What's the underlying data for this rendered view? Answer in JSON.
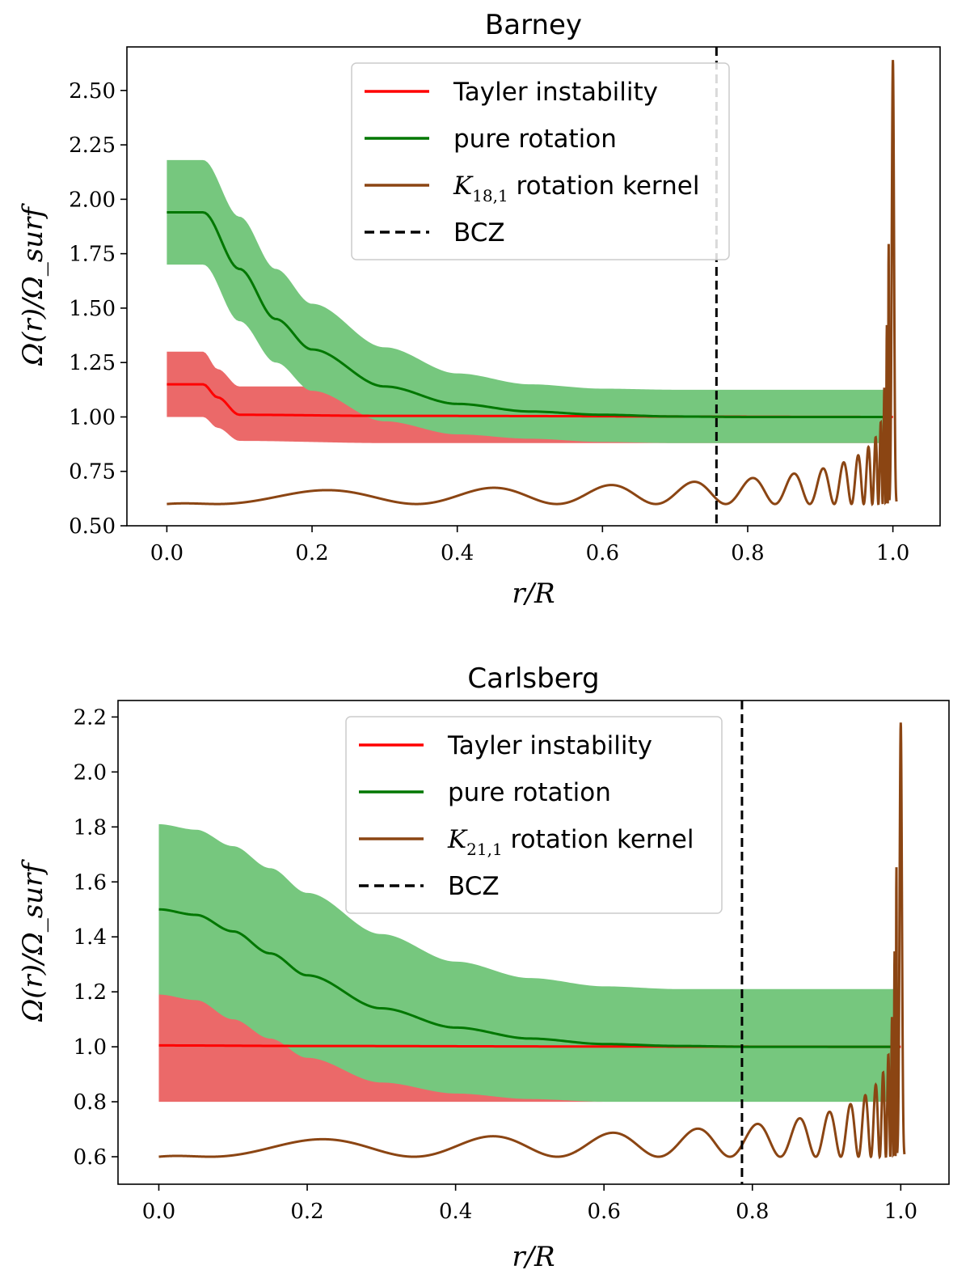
{
  "chart_data": [
    {
      "type": "line",
      "title": "Barney",
      "xlabel": "r/R",
      "ylabel": "Ω(r)/Ω_surf",
      "xlim": [
        -0.055,
        1.065
      ],
      "ylim": [
        0.5,
        2.7
      ],
      "xticks": [
        "0.0",
        "0.2",
        "0.4",
        "0.6",
        "0.8",
        "1.0"
      ],
      "yticks": [
        "0.50",
        "0.75",
        "1.00",
        "1.25",
        "1.50",
        "1.75",
        "2.00",
        "2.25",
        "2.50"
      ],
      "bcz": 0.757,
      "legend_position": "upper center",
      "legend": [
        {
          "label": "Tayler instability",
          "color": "#ff0000",
          "style": "solid"
        },
        {
          "label": "pure rotation",
          "color": "#007700",
          "style": "solid"
        },
        {
          "label_prefix": "K",
          "label_sub": "18,1",
          "label_suffix": " rotation kernel",
          "color": "#8b4513",
          "style": "solid"
        },
        {
          "label": "BCZ",
          "color": "#000000",
          "style": "dashed"
        }
      ],
      "series": [
        {
          "name": "Tayler instability",
          "x": [
            0.0,
            0.05,
            0.07,
            0.1,
            0.3,
            1.0
          ],
          "y": [
            1.15,
            1.15,
            1.09,
            1.01,
            1.005,
            1.0
          ],
          "band_lower": [
            1.0,
            1.0,
            0.95,
            0.89,
            0.88,
            0.88
          ],
          "band_upper": [
            1.3,
            1.3,
            1.22,
            1.14,
            1.14,
            0.88
          ]
        },
        {
          "name": "pure rotation",
          "x": [
            0.0,
            0.05,
            0.1,
            0.15,
            0.2,
            0.3,
            0.4,
            0.5,
            0.6,
            0.7,
            0.8,
            0.99
          ],
          "y": [
            1.94,
            1.94,
            1.68,
            1.45,
            1.31,
            1.14,
            1.06,
            1.025,
            1.01,
            1.002,
            1.0,
            1.0
          ],
          "band_lower": [
            1.7,
            1.7,
            1.44,
            1.25,
            1.12,
            0.98,
            0.92,
            0.9,
            0.885,
            0.88,
            0.88,
            0.88
          ],
          "band_upper": [
            2.18,
            2.18,
            1.92,
            1.68,
            1.52,
            1.32,
            1.2,
            1.15,
            1.13,
            1.125,
            1.125,
            1.125
          ]
        }
      ],
      "kernel": {
        "name": "K_18,1 rotation kernel",
        "base": 0.6,
        "peak_x": 1.0,
        "peak": 2.64,
        "end_x": 1.005
      }
    },
    {
      "type": "line",
      "title": "Carlsberg",
      "xlabel": "r/R",
      "ylabel": "Ω(r)/Ω_surf",
      "xlim": [
        -0.055,
        1.065
      ],
      "ylim": [
        0.5,
        2.26
      ],
      "xticks": [
        "0.0",
        "0.2",
        "0.4",
        "0.6",
        "0.8",
        "1.0"
      ],
      "yticks": [
        "0.6",
        "0.8",
        "1.0",
        "1.2",
        "1.4",
        "1.6",
        "1.8",
        "2.0",
        "2.2"
      ],
      "bcz": 0.786,
      "legend_position": "upper center",
      "legend": [
        {
          "label": "Tayler instability",
          "color": "#ff0000",
          "style": "solid"
        },
        {
          "label": "pure rotation",
          "color": "#007700",
          "style": "solid"
        },
        {
          "label_prefix": "K",
          "label_sub": "21,1",
          "label_suffix": " rotation kernel",
          "color": "#8b4513",
          "style": "solid"
        },
        {
          "label": "BCZ",
          "color": "#000000",
          "style": "dashed"
        }
      ],
      "series": [
        {
          "name": "Tayler instability",
          "x": [
            0.0,
            0.2,
            0.6,
            1.0
          ],
          "y": [
            1.005,
            1.003,
            1.001,
            1.0
          ],
          "band_lower": [
            0.8,
            0.8,
            0.8,
            0.8
          ],
          "band_upper": [
            1.2,
            1.1,
            0.8,
            0.8
          ]
        },
        {
          "name": "pure rotation",
          "x": [
            0.0,
            0.05,
            0.1,
            0.15,
            0.2,
            0.3,
            0.4,
            0.5,
            0.6,
            0.7,
            0.8,
            0.99
          ],
          "y": [
            1.5,
            1.48,
            1.42,
            1.34,
            1.26,
            1.14,
            1.07,
            1.03,
            1.01,
            1.003,
            1.0,
            1.0
          ],
          "band_lower": [
            1.19,
            1.17,
            1.1,
            1.03,
            0.96,
            0.87,
            0.83,
            0.81,
            0.8,
            0.8,
            0.8,
            0.8
          ],
          "band_upper": [
            1.81,
            1.79,
            1.73,
            1.65,
            1.56,
            1.41,
            1.31,
            1.25,
            1.22,
            1.21,
            1.21,
            1.21
          ]
        }
      ],
      "kernel": {
        "name": "K_21,1 rotation kernel",
        "base": 0.6,
        "peak_x": 1.0,
        "peak": 2.18,
        "end_x": 1.005
      }
    }
  ]
}
